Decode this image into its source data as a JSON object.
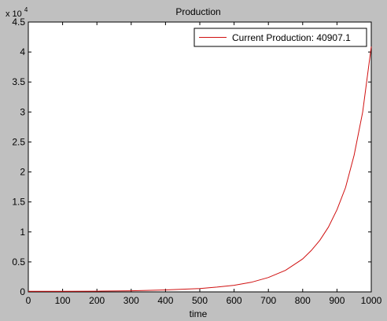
{
  "chart_data": {
    "type": "line",
    "title": "Production",
    "xlabel": "time",
    "ylabel": "",
    "xlim": [
      0,
      1000
    ],
    "ylim": [
      0,
      45000
    ],
    "x_ticks": [
      0,
      100,
      200,
      300,
      400,
      500,
      600,
      700,
      800,
      900,
      1000
    ],
    "x_tick_labels": [
      "0",
      "100",
      "200",
      "300",
      "400",
      "500",
      "600",
      "700",
      "800",
      "900",
      "1000"
    ],
    "y_ticks": [
      0,
      5000,
      10000,
      15000,
      20000,
      25000,
      30000,
      35000,
      40000,
      45000
    ],
    "y_tick_labels": [
      "0",
      "0.5",
      "1",
      "1.5",
      "2",
      "2.5",
      "3",
      "3.5",
      "4",
      "4.5"
    ],
    "y_multiplier": {
      "base": "x 10",
      "exponent": "4"
    },
    "grid": false,
    "legend_position": "top-right",
    "series": [
      {
        "name": "Current Production: 40907.1",
        "color": "#d01010",
        "x": [
          0,
          100,
          200,
          300,
          400,
          500,
          550,
          600,
          650,
          700,
          750,
          800,
          825,
          850,
          875,
          900,
          925,
          950,
          975,
          1000
        ],
        "y": [
          90,
          100,
          120,
          190,
          330,
          560,
          800,
          1100,
          1600,
          2400,
          3600,
          5500,
          6900,
          8600,
          10800,
          13700,
          17400,
          22800,
          30000,
          40907.1
        ]
      }
    ]
  }
}
